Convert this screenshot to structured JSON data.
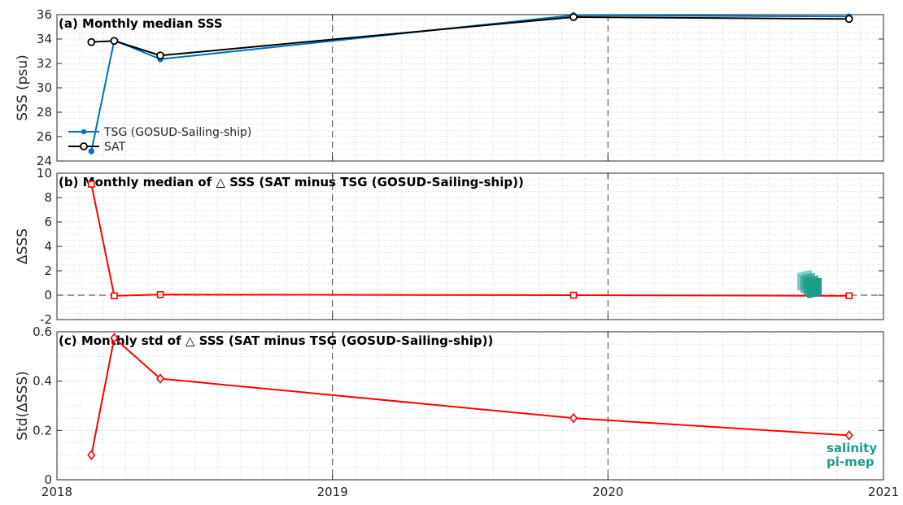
{
  "chart_data": [
    {
      "panel": "a",
      "type": "line",
      "title": "(a) Monthly median SSS",
      "xlabel": "",
      "ylabel": "SSS (psu)",
      "xlim": [
        2018.0,
        2021.0
      ],
      "ylim": [
        24,
        36
      ],
      "yticks": [
        24,
        26,
        28,
        30,
        32,
        34,
        36
      ],
      "grid": true,
      "legend": "lower-left",
      "series": [
        {
          "name": "TSG (GOSUD-Sailing-ship)",
          "color": "#0072BD",
          "marker": "dot",
          "x": [
            2018.125,
            2018.208,
            2018.375,
            2019.875,
            2020.875
          ],
          "y": [
            24.8,
            33.9,
            32.35,
            35.95,
            35.85
          ]
        },
        {
          "name": "SAT",
          "color": "#000000",
          "marker": "circle",
          "x": [
            2018.125,
            2018.208,
            2018.375,
            2019.875,
            2020.875
          ],
          "y": [
            33.75,
            33.85,
            32.65,
            35.8,
            35.65
          ]
        }
      ]
    },
    {
      "panel": "b",
      "type": "line",
      "title": "(b) Monthly median of △ SSS (SAT minus TSG (GOSUD-Sailing-ship))",
      "xlabel": "",
      "ylabel": "ΔSSS",
      "xlim": [
        2018.0,
        2021.0
      ],
      "ylim": [
        -2,
        10
      ],
      "yticks": [
        -2,
        0,
        2,
        4,
        6,
        8,
        10
      ],
      "grid": true,
      "zero_line": true,
      "series": [
        {
          "color": "#FF0000",
          "marker": "square",
          "x": [
            2018.125,
            2018.208,
            2018.375,
            2019.875,
            2020.875
          ],
          "y": [
            9.1,
            -0.05,
            0.05,
            0.0,
            -0.05
          ]
        }
      ]
    },
    {
      "panel": "c",
      "type": "line",
      "title": "(c) Monthly std of △ SSS (SAT minus TSG (GOSUD-Sailing-ship))",
      "xlabel": "",
      "ylabel": "Std(ΔSSS)",
      "xlim": [
        2018.0,
        2021.0
      ],
      "ylim": [
        0,
        0.6
      ],
      "yticks": [
        0,
        0.2,
        0.4,
        0.6
      ],
      "ytick_labels": [
        "0",
        "0.2",
        "0.4",
        "0.6"
      ],
      "grid": true,
      "series": [
        {
          "color": "#FF0000",
          "marker": "diamond",
          "x": [
            2018.125,
            2018.208,
            2018.375,
            2019.875,
            2020.875
          ],
          "y": [
            0.1,
            0.575,
            0.41,
            0.25,
            0.18
          ]
        }
      ]
    }
  ],
  "x_axis": {
    "ticks": [
      2018,
      2019,
      2020,
      2021
    ],
    "labels": [
      "2018",
      "2019",
      "2020",
      "2021"
    ],
    "year_dividers": [
      2019,
      2020
    ]
  },
  "logo": {
    "line1": "salinity",
    "line2": "pi-mep",
    "color": "#1a9e8a"
  }
}
